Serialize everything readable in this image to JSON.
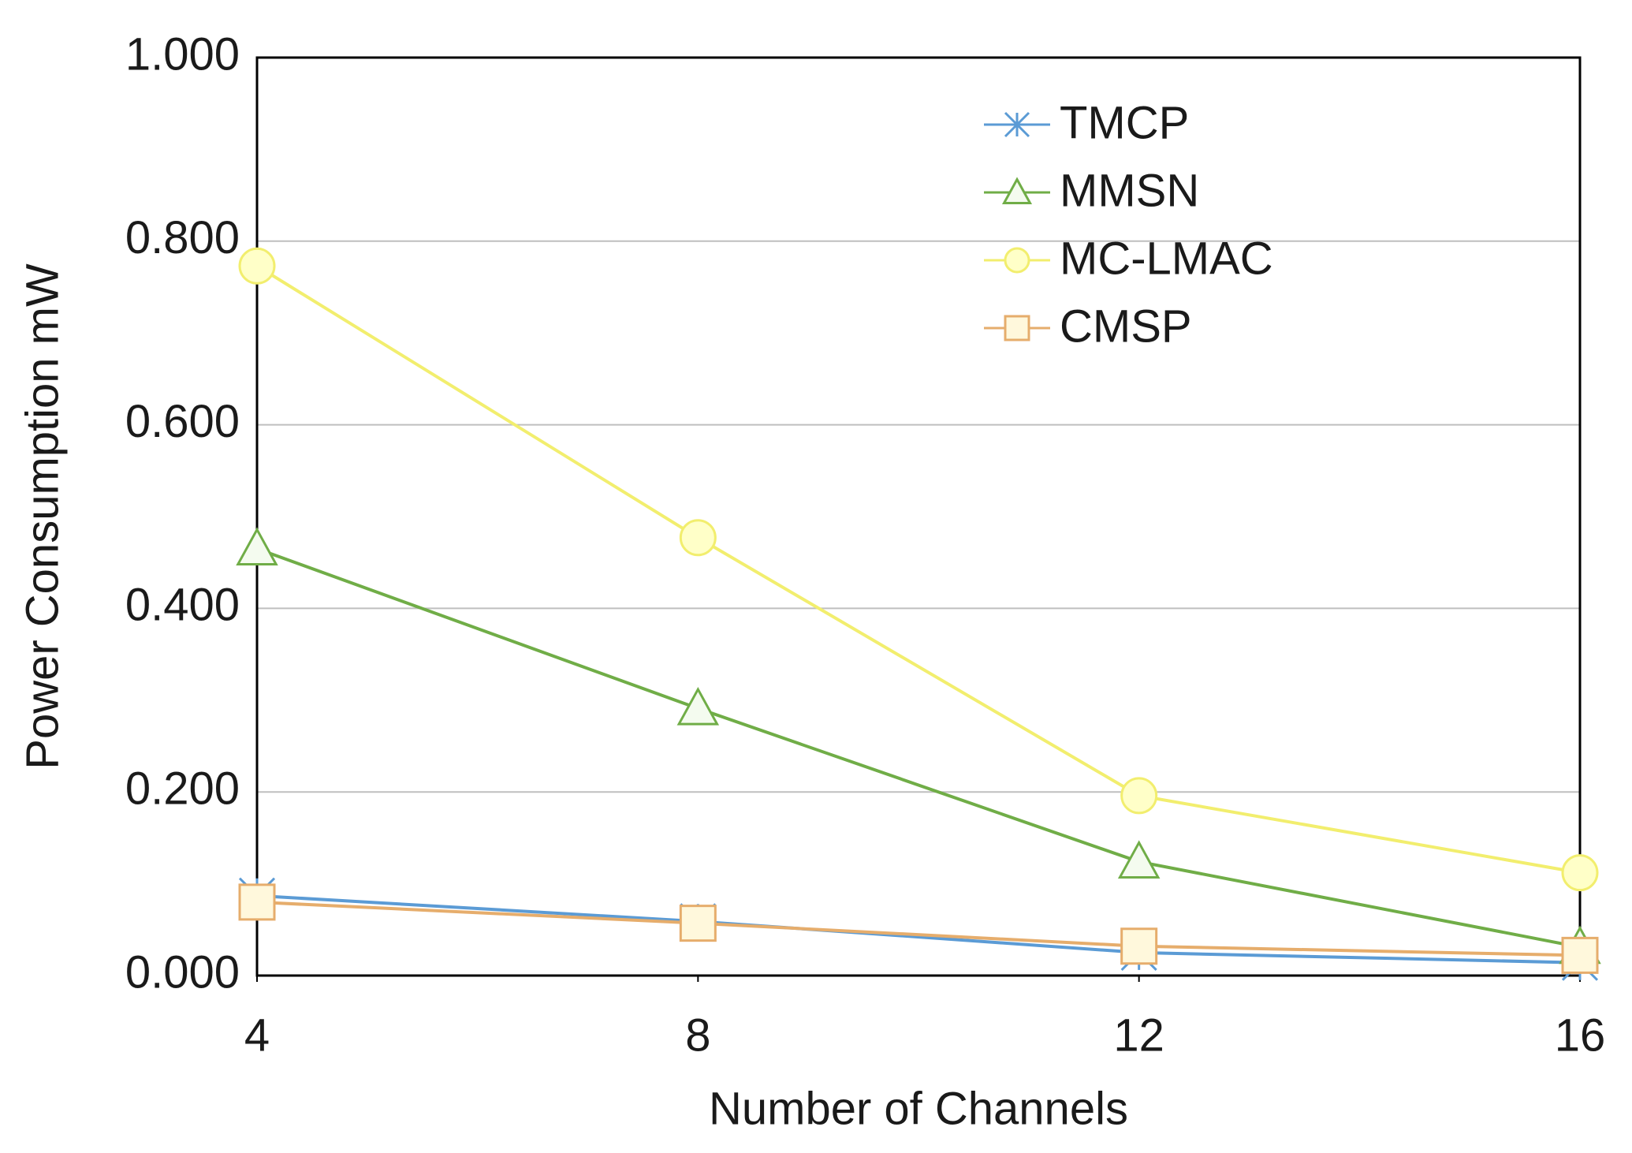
{
  "chart_data": {
    "type": "line",
    "x_label": "Number of Channels",
    "y_label": "Power Consumption mW",
    "x": [
      4,
      8,
      12,
      16
    ],
    "xlim": [
      4,
      16
    ],
    "xticks": [
      4,
      8,
      12,
      16
    ],
    "ylim": [
      0,
      1
    ],
    "yticks": [
      {
        "value": 0,
        "label": "0.000"
      },
      {
        "value": 0.2,
        "label": "0.200"
      },
      {
        "value": 0.4,
        "label": "0.400"
      },
      {
        "value": 0.6,
        "label": "0.600"
      },
      {
        "value": 0.8,
        "label": "0.800"
      },
      {
        "value": 1,
        "label": "1.000"
      }
    ],
    "grid": true,
    "legend": "upper right",
    "series": [
      {
        "name": "TMCP",
        "color": "#5b9bd5",
        "marker": "asterisk",
        "values": [
          0.087,
          0.059,
          0.025,
          0.014
        ]
      },
      {
        "name": "MMSN",
        "color": "#70ad47",
        "marker": "triangle",
        "values": [
          0.465,
          0.291,
          0.124,
          0.031
        ]
      },
      {
        "name": "MC-LMAC",
        "color": "#f2ee6e",
        "marker": "circle",
        "values": [
          0.773,
          0.477,
          0.196,
          0.112
        ]
      },
      {
        "name": "CMSP",
        "color": "#e6ad6c",
        "marker": "square",
        "values": [
          0.08,
          0.057,
          0.032,
          0.022
        ]
      }
    ]
  }
}
